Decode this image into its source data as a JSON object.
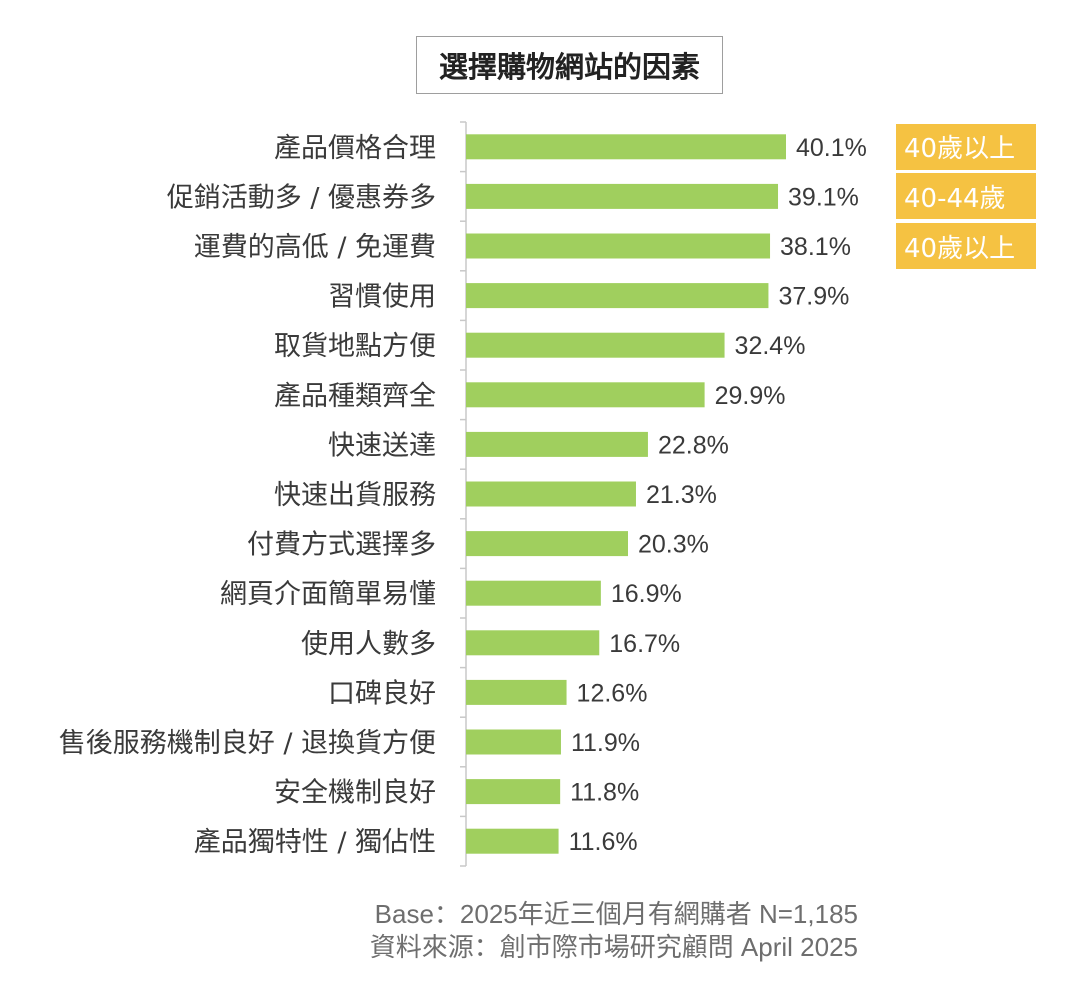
{
  "title": "選擇購物網站的因素",
  "chart_data": {
    "type": "bar",
    "orientation": "horizontal",
    "title": "選擇購物網站的因素",
    "categories": [
      "產品價格合理",
      "促銷活動多 / 優惠券多",
      "運費的高低 / 免運費",
      "習慣使用",
      "取貨地點方便",
      "產品種類齊全",
      "快速送達",
      "快速出貨服務",
      "付費方式選擇多",
      "網頁介面簡單易懂",
      "使用人數多",
      "口碑良好",
      "售後服務機制良好 / 退換貨方便",
      "安全機制良好",
      "產品獨特性 / 獨佔性"
    ],
    "values": [
      40.1,
      39.1,
      38.1,
      37.9,
      32.4,
      29.9,
      22.8,
      21.3,
      20.3,
      16.9,
      16.7,
      12.6,
      11.9,
      11.8,
      11.6
    ],
    "value_labels": [
      "40.1%",
      "39.1%",
      "38.1%",
      "37.9%",
      "32.4%",
      "29.9%",
      "22.8%",
      "21.3%",
      "20.3%",
      "16.9%",
      "16.7%",
      "12.6%",
      "11.9%",
      "11.8%",
      "11.6%"
    ],
    "unit": "%",
    "xlim": [
      0,
      50
    ],
    "grid": false,
    "bar_color": "#a0cf5e",
    "annotations": [
      {
        "category_index": 0,
        "text": "40歲以上"
      },
      {
        "category_index": 1,
        "text": "40-44歲"
      },
      {
        "category_index": 2,
        "text": "40歲以上"
      }
    ],
    "annotation_color": "#f5c242"
  },
  "footnote": {
    "base": "Base：2025年近三個月有網購者 N=1,185",
    "source": "資料來源：創市際市場研究顧問 April 2025"
  }
}
